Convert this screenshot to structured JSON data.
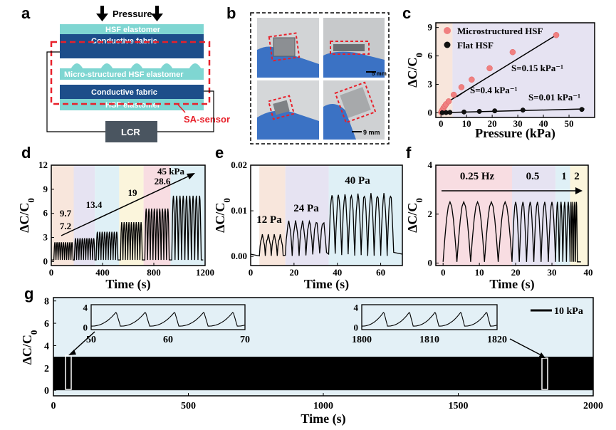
{
  "panel_labels": [
    "a",
    "b",
    "c",
    "d",
    "e",
    "f",
    "g"
  ],
  "schematic": {
    "pressure": "Pressure",
    "top_layer": "HSF elastomer",
    "fabric_top": "Conductive fabric",
    "middle": "Micro-structured HSF elastomer",
    "fabric_bottom": "Conductive fabric",
    "bottom_layer": "HSF elastomer",
    "sensor_label": "SA-sensor",
    "meter": "LCR"
  },
  "photos": {
    "scale_top": "5 mm",
    "scale_bottom": "9 mm"
  },
  "colors": {
    "teal": "#7fd6d2",
    "navy": "#1d4e8a",
    "red_dash": "#e8202a",
    "lcr_box": "#4a5560",
    "band_peach": "#f8e6dc",
    "band_lavender": "#e6e3f2",
    "band_blue": "#dff0f6",
    "band_yellow": "#fbf5dc",
    "band_pink": "#f8dde2",
    "pink_marker": "#f08080",
    "g_bg": "#e3f0f6"
  },
  "chart_data": [
    {
      "panel": "c",
      "type": "scatter",
      "xlabel": "Pressure (kPa)",
      "ylabel": "ΔC/C0",
      "xlim": [
        -2,
        60
      ],
      "ylim": [
        -0.5,
        9.5
      ],
      "xticks": [
        "0",
        "10",
        "20",
        "30",
        "40",
        "50"
      ],
      "yticks": [
        "0",
        "3",
        "6",
        "9"
      ],
      "series": [
        {
          "name": "Microstructured HSF",
          "color": "#f08080",
          "x": [
            0.1,
            0.3,
            0.6,
            1.0,
            1.5,
            2.0,
            3.0,
            5.0,
            8.0,
            12.0,
            19.0,
            28.0,
            45.0
          ],
          "y": [
            0.05,
            0.15,
            0.3,
            0.5,
            0.7,
            0.9,
            1.2,
            1.9,
            2.7,
            3.5,
            4.7,
            6.4,
            8.2
          ]
        },
        {
          "name": "Flat HSF",
          "color": "#111111",
          "x": [
            0.5,
            2.0,
            3.5,
            9.0,
            15.0,
            21.0,
            32.0,
            55.0
          ],
          "y": [
            0.0,
            0.02,
            0.04,
            0.08,
            0.14,
            0.2,
            0.28,
            0.35
          ]
        }
      ],
      "annotations": [
        "S=0.15 kPa⁻¹",
        "S=0.4 kPa⁻¹",
        "S=0.01 kPa⁻¹"
      ]
    },
    {
      "panel": "d",
      "type": "line",
      "xlabel": "Time (s)",
      "ylabel": "ΔC/C0",
      "xlim": [
        0,
        1200
      ],
      "ylim": [
        -0.5,
        12
      ],
      "xticks": [
        "0",
        "400",
        "800",
        "1200"
      ],
      "yticks": [
        "0",
        "3",
        "6",
        "9",
        "12"
      ],
      "annotations": [
        "7.2",
        "9.7",
        "13.4",
        "19",
        "28.6",
        "45 kPa"
      ],
      "segments": [
        {
          "pressure": "7.2",
          "t": [
            20,
            170
          ],
          "peak": 2.4
        },
        {
          "pressure": "9.7",
          "t": [
            180,
            340
          ],
          "peak": 2.9
        },
        {
          "pressure": "13.4",
          "t": [
            350,
            520
          ],
          "peak": 3.7
        },
        {
          "pressure": "19",
          "t": [
            540,
            710
          ],
          "peak": 4.9
        },
        {
          "pressure": "28.6",
          "t": [
            730,
            920
          ],
          "peak": 6.6
        },
        {
          "pressure": "45 kPa",
          "t": [
            940,
            1170
          ],
          "peak": 8.2
        }
      ]
    },
    {
      "panel": "e",
      "type": "line",
      "xlabel": "Time (s)",
      "ylabel": "ΔC/C0",
      "xlim": [
        0,
        70
      ],
      "ylim": [
        -0.002,
        0.02
      ],
      "xticks": [
        "0",
        "20",
        "40",
        "60"
      ],
      "yticks": [
        "0.00",
        "0.01",
        "0.02"
      ],
      "annotations": [
        "12 Pa",
        "24 Pa",
        "40 Pa"
      ],
      "segments": [
        {
          "pressure": "12 Pa",
          "t": [
            4,
            15
          ],
          "peak": 0.0045
        },
        {
          "pressure": "24 Pa",
          "t": [
            16,
            35
          ],
          "peak": 0.0075
        },
        {
          "pressure": "40 Pa",
          "t": [
            36,
            66
          ],
          "peak": 0.0135
        }
      ]
    },
    {
      "panel": "f",
      "type": "line",
      "xlabel": "Time (s)",
      "ylabel": "ΔC/C0",
      "xlim": [
        -2,
        40
      ],
      "ylim": [
        -0.1,
        4
      ],
      "xticks": [
        "0",
        "10",
        "20",
        "30",
        "40"
      ],
      "yticks": [
        "0",
        "2",
        "4"
      ],
      "annotations": [
        "0.25 Hz",
        "0.5",
        "1",
        "2"
      ],
      "segments": [
        {
          "freq": "0.25 Hz",
          "t": [
            0,
            19
          ],
          "peak": 2.5
        },
        {
          "freq": "0.5",
          "t": [
            19,
            31
          ],
          "peak": 2.5
        },
        {
          "freq": "1",
          "t": [
            31,
            35
          ],
          "peak": 2.5
        },
        {
          "freq": "2",
          "t": [
            35,
            37
          ],
          "peak": 2.5
        }
      ]
    },
    {
      "panel": "g",
      "type": "line",
      "xlabel": "Time (s)",
      "ylabel": "ΔC/C0",
      "xlim": [
        0,
        2000
      ],
      "ylim": [
        -0.5,
        8.3
      ],
      "xticks": [
        "0",
        "500",
        "1000",
        "1500",
        "2000"
      ],
      "yticks": [
        "0",
        "2",
        "4",
        "6",
        "8"
      ],
      "legend": "10 kPa",
      "peak": 3.0,
      "insets": [
        {
          "xlim": [
            50,
            70
          ],
          "xticks": [
            "50",
            "60",
            "70"
          ],
          "yticks": [
            "0",
            "4"
          ]
        },
        {
          "xlim": [
            1800,
            1820
          ],
          "xticks": [
            "1800",
            "1810",
            "1820"
          ],
          "yticks": [
            "0",
            "4"
          ]
        }
      ]
    }
  ]
}
